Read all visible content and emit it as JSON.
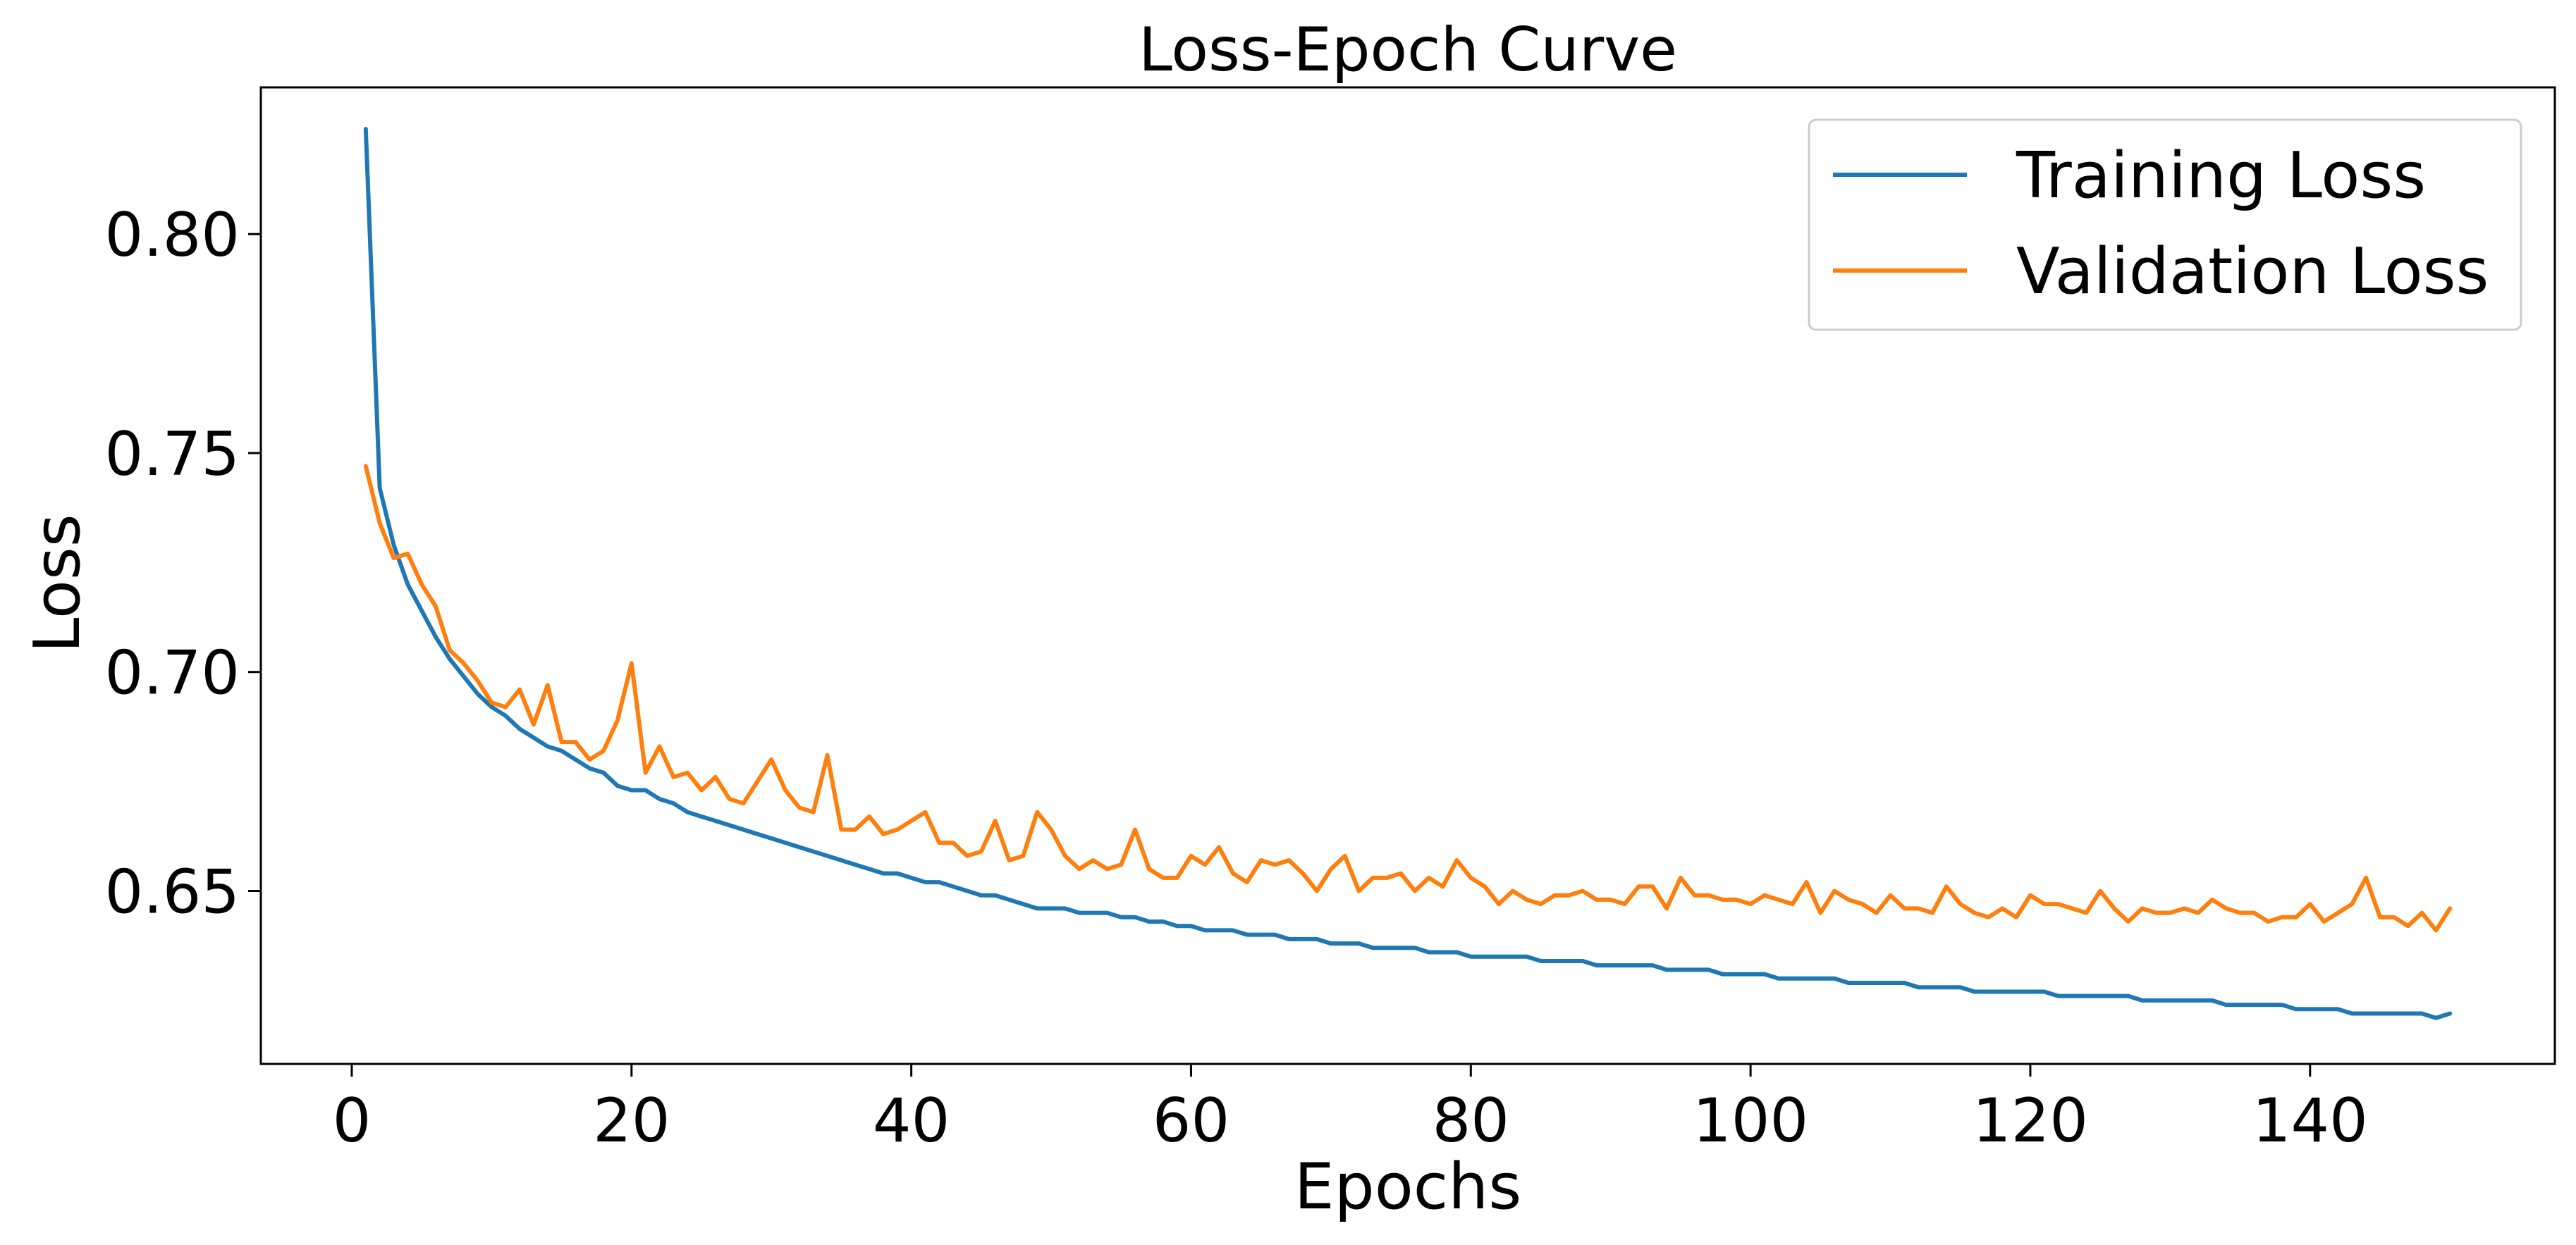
{
  "chart_data": {
    "type": "line",
    "title": "Loss-Epoch Curve",
    "xlabel": "Epochs",
    "ylabel": "Loss",
    "xlim": [
      -6.5,
      157.5
    ],
    "ylim": [
      0.6105,
      0.8335
    ],
    "xticks": [
      0,
      20,
      40,
      60,
      80,
      100,
      120,
      140
    ],
    "xtick_labels": [
      "0",
      "20",
      "40",
      "60",
      "80",
      "100",
      "120",
      "140"
    ],
    "yticks": [
      0.65,
      0.7,
      0.75,
      0.8
    ],
    "ytick_labels": [
      "0.65",
      "0.70",
      "0.75",
      "0.80"
    ],
    "grid": false,
    "legend_position": "top-right",
    "series": [
      {
        "name": "Training Loss",
        "color": "#1f77b4",
        "x_start": 1,
        "x_step": 1,
        "values": [
          0.824,
          0.742,
          0.729,
          0.72,
          0.714,
          0.708,
          0.703,
          0.699,
          0.695,
          0.692,
          0.69,
          0.687,
          0.685,
          0.683,
          0.682,
          0.68,
          0.678,
          0.677,
          0.674,
          0.673,
          0.673,
          0.671,
          0.67,
          0.668,
          0.667,
          0.666,
          0.665,
          0.664,
          0.663,
          0.662,
          0.661,
          0.66,
          0.659,
          0.658,
          0.657,
          0.656,
          0.655,
          0.654,
          0.654,
          0.653,
          0.652,
          0.652,
          0.651,
          0.65,
          0.649,
          0.649,
          0.648,
          0.647,
          0.646,
          0.646,
          0.646,
          0.645,
          0.645,
          0.645,
          0.644,
          0.644,
          0.643,
          0.643,
          0.642,
          0.642,
          0.641,
          0.641,
          0.641,
          0.64,
          0.64,
          0.64,
          0.639,
          0.639,
          0.639,
          0.638,
          0.638,
          0.638,
          0.637,
          0.637,
          0.637,
          0.637,
          0.636,
          0.636,
          0.636,
          0.635,
          0.635,
          0.635,
          0.635,
          0.635,
          0.634,
          0.634,
          0.634,
          0.634,
          0.633,
          0.633,
          0.633,
          0.633,
          0.633,
          0.632,
          0.632,
          0.632,
          0.632,
          0.631,
          0.631,
          0.631,
          0.631,
          0.63,
          0.63,
          0.63,
          0.63,
          0.63,
          0.629,
          0.629,
          0.629,
          0.629,
          0.629,
          0.628,
          0.628,
          0.628,
          0.628,
          0.627,
          0.627,
          0.627,
          0.627,
          0.627,
          0.627,
          0.626,
          0.626,
          0.626,
          0.626,
          0.626,
          0.626,
          0.625,
          0.625,
          0.625,
          0.625,
          0.625,
          0.625,
          0.624,
          0.624,
          0.624,
          0.624,
          0.624,
          0.623,
          0.623,
          0.623,
          0.623,
          0.622,
          0.622,
          0.622,
          0.622,
          0.622,
          0.622,
          0.621,
          0.622
        ]
      },
      {
        "name": "Validation Loss",
        "color": "#ff7f0e",
        "x_start": 1,
        "x_step": 1,
        "values": [
          0.747,
          0.734,
          0.726,
          0.727,
          0.72,
          0.715,
          0.705,
          0.702,
          0.698,
          0.693,
          0.692,
          0.696,
          0.688,
          0.697,
          0.684,
          0.684,
          0.68,
          0.682,
          0.689,
          0.702,
          0.677,
          0.683,
          0.676,
          0.677,
          0.673,
          0.676,
          0.671,
          0.67,
          0.675,
          0.68,
          0.673,
          0.669,
          0.668,
          0.681,
          0.664,
          0.664,
          0.667,
          0.663,
          0.664,
          0.666,
          0.668,
          0.661,
          0.661,
          0.658,
          0.659,
          0.666,
          0.657,
          0.658,
          0.668,
          0.664,
          0.658,
          0.655,
          0.657,
          0.655,
          0.656,
          0.664,
          0.655,
          0.653,
          0.653,
          0.658,
          0.656,
          0.66,
          0.654,
          0.652,
          0.657,
          0.656,
          0.657,
          0.654,
          0.65,
          0.655,
          0.658,
          0.65,
          0.653,
          0.653,
          0.654,
          0.65,
          0.653,
          0.651,
          0.657,
          0.653,
          0.651,
          0.647,
          0.65,
          0.648,
          0.647,
          0.649,
          0.649,
          0.65,
          0.648,
          0.648,
          0.647,
          0.651,
          0.651,
          0.646,
          0.653,
          0.649,
          0.649,
          0.648,
          0.648,
          0.647,
          0.649,
          0.648,
          0.647,
          0.652,
          0.645,
          0.65,
          0.648,
          0.647,
          0.645,
          0.649,
          0.646,
          0.646,
          0.645,
          0.651,
          0.647,
          0.645,
          0.644,
          0.646,
          0.644,
          0.649,
          0.647,
          0.647,
          0.646,
          0.645,
          0.65,
          0.646,
          0.643,
          0.646,
          0.645,
          0.645,
          0.646,
          0.645,
          0.648,
          0.646,
          0.645,
          0.645,
          0.643,
          0.644,
          0.644,
          0.647,
          0.643,
          0.645,
          0.647,
          0.653,
          0.644,
          0.644,
          0.642,
          0.645,
          0.641,
          0.646
        ]
      }
    ]
  }
}
